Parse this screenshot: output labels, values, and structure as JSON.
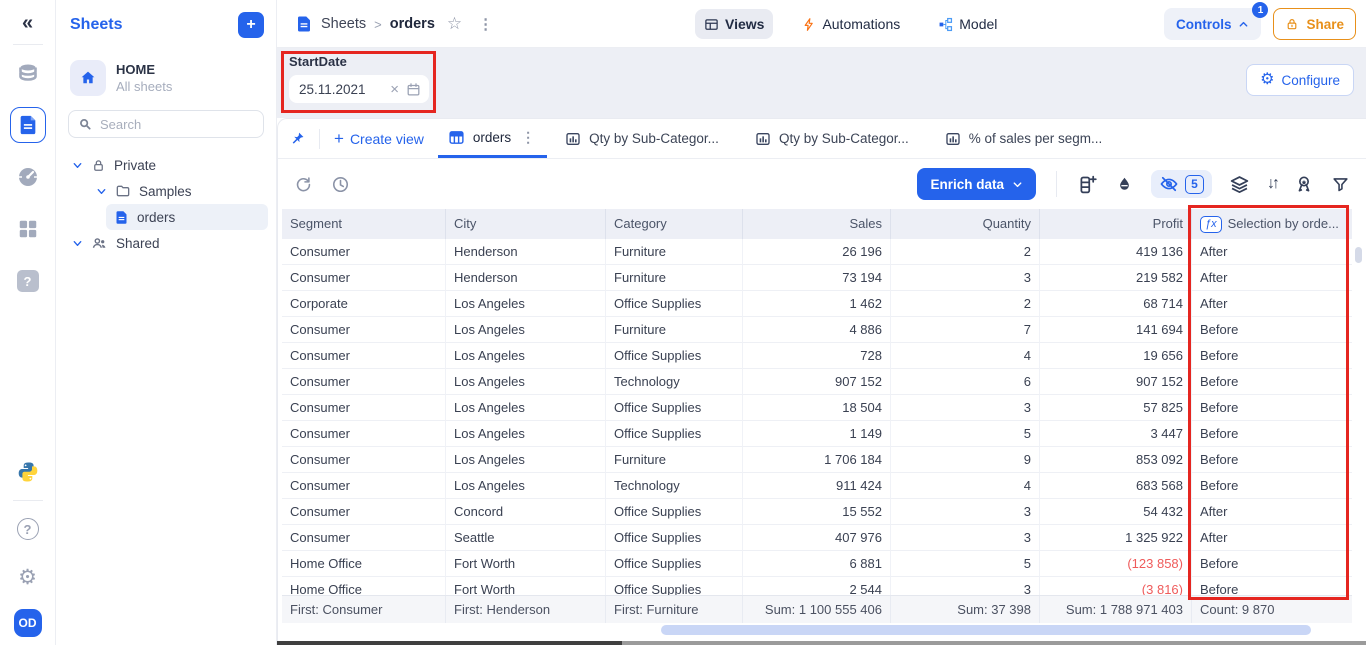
{
  "icons": {
    "collapse": "«",
    "kebab": "⋮",
    "star": "☆",
    "plus": "+",
    "question": "?",
    "gear": "⚙",
    "sort": "↓↑",
    "clear": "×",
    "fx": "ƒx"
  },
  "rail": {
    "avatar_initials": "OD"
  },
  "sheets_panel": {
    "title": "Sheets",
    "home_title": "HOME",
    "home_subtitle": "All sheets",
    "search_placeholder": "Search",
    "tree": {
      "private": "Private",
      "samples": "Samples",
      "orders": "orders",
      "shared": "Shared"
    }
  },
  "topbar": {
    "breadcrumb_root": "Sheets",
    "breadcrumb_current": "orders",
    "views": "Views",
    "automations": "Automations",
    "model": "Model",
    "controls": "Controls",
    "controls_badge": "1",
    "share": "Share"
  },
  "filterbar": {
    "label": "StartDate",
    "value": "25.11.2021",
    "configure": "Configure"
  },
  "tabbar": {
    "create_view": "Create view",
    "active_tab": "orders",
    "chart_tabs": [
      "Qty by Sub-Categor...",
      "Qty by Sub-Categor...",
      "% of sales per segm..."
    ]
  },
  "toolbar": {
    "enrich_label": "Enrich data",
    "hidden_count": "5"
  },
  "table": {
    "columns": [
      {
        "key": 0,
        "label": "Segment",
        "align": "left"
      },
      {
        "key": 1,
        "label": "City",
        "align": "left"
      },
      {
        "key": 2,
        "label": "Category",
        "align": "left"
      },
      {
        "key": 3,
        "label": "Sales",
        "align": "right"
      },
      {
        "key": 4,
        "label": "Quantity",
        "align": "right"
      },
      {
        "key": 5,
        "label": "Profit",
        "align": "right"
      },
      {
        "key": 6,
        "label": "Selection by orde...",
        "align": "left",
        "fx": true
      }
    ],
    "rows": [
      {
        "cells": [
          "Consumer",
          "Henderson",
          "Furniture",
          "26 196",
          "2",
          "419 136",
          "After"
        ],
        "negative_profit": false
      },
      {
        "cells": [
          "Consumer",
          "Henderson",
          "Furniture",
          "73 194",
          "3",
          "219 582",
          "After"
        ],
        "negative_profit": false
      },
      {
        "cells": [
          "Corporate",
          "Los Angeles",
          "Office Supplies",
          "1 462",
          "2",
          "68 714",
          "After"
        ],
        "negative_profit": false
      },
      {
        "cells": [
          "Consumer",
          "Los Angeles",
          "Furniture",
          "4 886",
          "7",
          "141 694",
          "Before"
        ],
        "negative_profit": false
      },
      {
        "cells": [
          "Consumer",
          "Los Angeles",
          "Office Supplies",
          "728",
          "4",
          "19 656",
          "Before"
        ],
        "negative_profit": false
      },
      {
        "cells": [
          "Consumer",
          "Los Angeles",
          "Technology",
          "907 152",
          "6",
          "907 152",
          "Before"
        ],
        "negative_profit": false
      },
      {
        "cells": [
          "Consumer",
          "Los Angeles",
          "Office Supplies",
          "18 504",
          "3",
          "57 825",
          "Before"
        ],
        "negative_profit": false
      },
      {
        "cells": [
          "Consumer",
          "Los Angeles",
          "Office Supplies",
          "1 149",
          "5",
          "3 447",
          "Before"
        ],
        "negative_profit": false
      },
      {
        "cells": [
          "Consumer",
          "Los Angeles",
          "Furniture",
          "1 706 184",
          "9",
          "853 092",
          "Before"
        ],
        "negative_profit": false
      },
      {
        "cells": [
          "Consumer",
          "Los Angeles",
          "Technology",
          "911 424",
          "4",
          "683 568",
          "Before"
        ],
        "negative_profit": false
      },
      {
        "cells": [
          "Consumer",
          "Concord",
          "Office Supplies",
          "15 552",
          "3",
          "54 432",
          "After"
        ],
        "negative_profit": false
      },
      {
        "cells": [
          "Consumer",
          "Seattle",
          "Office Supplies",
          "407 976",
          "3",
          "1 325 922",
          "After"
        ],
        "negative_profit": false
      },
      {
        "cells": [
          "Home Office",
          "Fort Worth",
          "Office Supplies",
          "6 881",
          "5",
          "(123 858)",
          "Before"
        ],
        "negative_profit": true
      },
      {
        "cells": [
          "Home Office",
          "Fort Worth",
          "Office Supplies",
          "2 544",
          "3",
          "(3 816)",
          "Before"
        ],
        "negative_profit": true
      }
    ],
    "footer": [
      "First: Consumer",
      "First: Henderson",
      "First: Furniture",
      "Sum: 1 100 555 406",
      "Sum: 37 398",
      "Sum: 1 788 971 403",
      "Count: 9 870"
    ]
  },
  "colors": {
    "accent_blue": "#2563eb",
    "highlight_red": "#e52620",
    "negative_red": "#ef5b5b",
    "share_orange": "#e8901a",
    "automation_orange": "#f97316",
    "header_bg": "#edeff6",
    "filter_bg": "#edeff5"
  }
}
